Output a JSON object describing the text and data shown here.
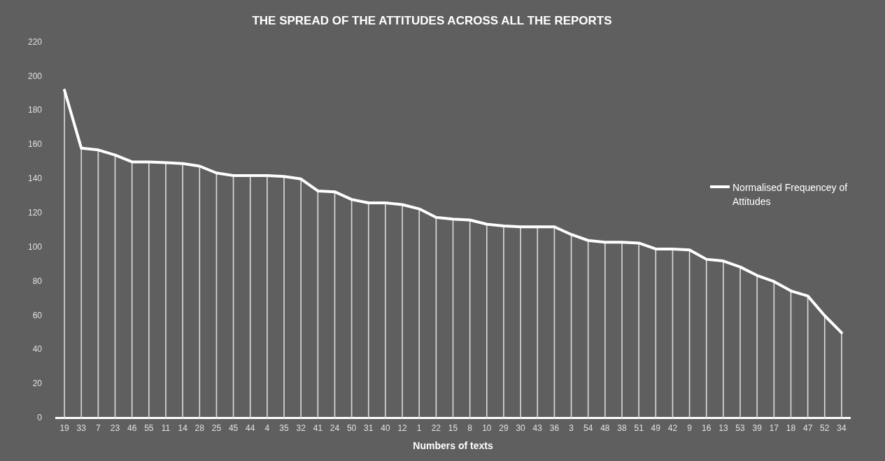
{
  "chart_data": {
    "type": "line",
    "title": "THE SPREAD OF THE ATTITUDES ACROSS ALL THE REPORTS",
    "xlabel": "Numbers of texts",
    "categories": [
      "19",
      "33",
      "7",
      "23",
      "46",
      "55",
      "11",
      "14",
      "28",
      "25",
      "45",
      "44",
      "4",
      "35",
      "32",
      "41",
      "24",
      "50",
      "31",
      "40",
      "12",
      "1",
      "22",
      "15",
      "8",
      "10",
      "29",
      "30",
      "43",
      "36",
      "3",
      "54",
      "48",
      "38",
      "51",
      "49",
      "42",
      "9",
      "16",
      "13",
      "53",
      "39",
      "17",
      "18",
      "47",
      "52",
      "34"
    ],
    "series": [
      {
        "name": "Normalised Frequencey of Attitudes",
        "color": "#ffffff",
        "values": [
          192,
          158,
          157,
          154,
          150,
          150,
          149.5,
          149,
          147.5,
          143.5,
          142,
          142,
          142,
          141.5,
          140,
          133,
          132.5,
          128,
          126,
          126,
          125,
          122.5,
          117.5,
          116.5,
          116,
          113.5,
          112.5,
          112,
          112,
          112,
          107.5,
          104,
          103,
          103,
          102.5,
          99,
          99,
          98.5,
          93,
          92,
          88.5,
          83.5,
          80,
          74.5,
          71.5,
          60,
          50
        ]
      },
      {
        "type": "bar",
        "color": "#d9d9d9",
        "values": [
          192,
          158,
          157,
          154,
          150,
          150,
          149.5,
          149,
          147.5,
          143.5,
          142,
          142,
          142,
          141.5,
          140,
          133,
          132.5,
          128,
          126,
          126,
          125,
          122.5,
          117.5,
          116.5,
          116,
          113.5,
          112.5,
          112,
          112,
          112,
          107.5,
          104,
          103,
          103,
          102.5,
          99,
          99,
          98.5,
          93,
          92,
          88.5,
          83.5,
          80,
          74.5,
          71.5,
          60,
          50
        ]
      }
    ],
    "ylim": [
      0,
      220
    ],
    "yticks": [
      0,
      20,
      40,
      60,
      80,
      100,
      120,
      140,
      160,
      180,
      200,
      220
    ],
    "grid": false,
    "legend": "right",
    "marker": "none",
    "line_style": "solid"
  }
}
